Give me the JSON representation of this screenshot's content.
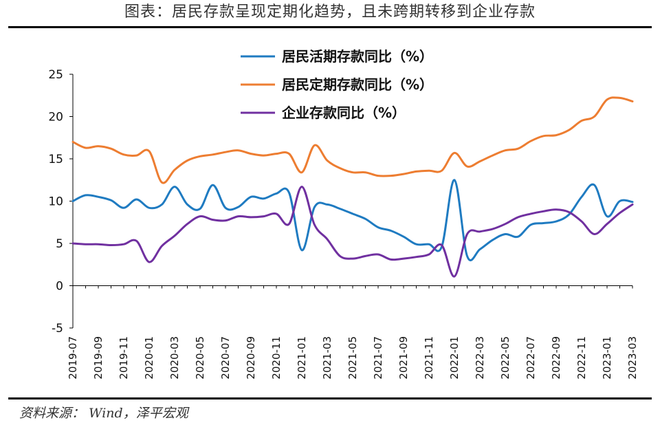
{
  "title": "图表：居民存款呈现定期化趋势，且未跨期转移到企业存款",
  "source": "资料来源： Wind，泽平宏观",
  "chart_data": {
    "type": "line",
    "ylim": [
      -5,
      25
    ],
    "yticks": [
      -5,
      0,
      5,
      10,
      15,
      20,
      25
    ],
    "x": [
      "2019-07",
      "2019-08",
      "2019-09",
      "2019-10",
      "2019-11",
      "2019-12",
      "2020-01",
      "2020-02",
      "2020-03",
      "2020-04",
      "2020-05",
      "2020-06",
      "2020-07",
      "2020-08",
      "2020-09",
      "2020-10",
      "2020-11",
      "2020-12",
      "2021-01",
      "2021-02",
      "2021-03",
      "2021-04",
      "2021-05",
      "2021-06",
      "2021-07",
      "2021-08",
      "2021-09",
      "2021-10",
      "2021-11",
      "2021-12",
      "2022-01",
      "2022-02",
      "2022-03",
      "2022-04",
      "2022-05",
      "2022-06",
      "2022-07",
      "2022-08",
      "2022-09",
      "2022-10",
      "2022-11",
      "2022-12",
      "2023-01",
      "2023-02",
      "2023-03"
    ],
    "xtick_labels": [
      "2019-07",
      "2019-09",
      "2019-11",
      "2020-01",
      "2020-03",
      "2020-05",
      "2020-07",
      "2020-09",
      "2020-11",
      "2021-01",
      "2021-03",
      "2021-05",
      "2021-07",
      "2021-09",
      "2021-11",
      "2022-01",
      "2022-03",
      "2022-05",
      "2022-07",
      "2022-09",
      "2022-11",
      "2023-01",
      "2023-03"
    ],
    "legend_position": "top-center",
    "grid": false,
    "series": [
      {
        "name": "居民活期存款同比（%）",
        "color": "#1F7BC1",
        "values": [
          10.0,
          10.7,
          10.5,
          10.1,
          9.2,
          10.2,
          9.2,
          9.6,
          11.7,
          9.6,
          9.1,
          11.9,
          9.2,
          9.3,
          10.5,
          10.3,
          10.9,
          11.0,
          4.2,
          9.3,
          9.6,
          9.1,
          8.5,
          7.9,
          6.9,
          6.5,
          5.8,
          4.9,
          4.9,
          4.6,
          12.5,
          3.5,
          4.3,
          5.4,
          6.1,
          5.8,
          7.2,
          7.4,
          7.6,
          8.4,
          10.5,
          11.9,
          8.2,
          10.0,
          9.9
        ]
      },
      {
        "name": "居民定期存款同比（%）",
        "color": "#ED7D31",
        "values": [
          17.0,
          16.3,
          16.5,
          16.2,
          15.5,
          15.4,
          15.9,
          12.2,
          13.7,
          14.8,
          15.3,
          15.5,
          15.8,
          16.0,
          15.6,
          15.4,
          15.6,
          15.6,
          13.4,
          16.6,
          14.8,
          13.9,
          13.4,
          13.4,
          13.0,
          13.0,
          13.2,
          13.5,
          13.6,
          13.6,
          15.7,
          14.1,
          14.7,
          15.4,
          16.0,
          16.2,
          17.1,
          17.7,
          17.8,
          18.4,
          19.5,
          20.0,
          22.0,
          22.2,
          21.8
        ]
      },
      {
        "name": "企业存款同比（%）",
        "color": "#7030A0",
        "values": [
          5.0,
          4.9,
          4.9,
          4.8,
          4.9,
          5.3,
          2.8,
          4.7,
          5.9,
          7.3,
          8.2,
          7.8,
          7.7,
          8.2,
          8.1,
          8.2,
          8.5,
          7.3,
          11.7,
          7.2,
          5.5,
          3.5,
          3.2,
          3.5,
          3.7,
          3.1,
          3.2,
          3.4,
          3.7,
          4.8,
          1.1,
          6.1,
          6.4,
          6.7,
          7.3,
          8.1,
          8.5,
          8.8,
          9.0,
          8.7,
          7.6,
          6.1,
          7.3,
          8.6,
          9.6
        ]
      }
    ]
  }
}
